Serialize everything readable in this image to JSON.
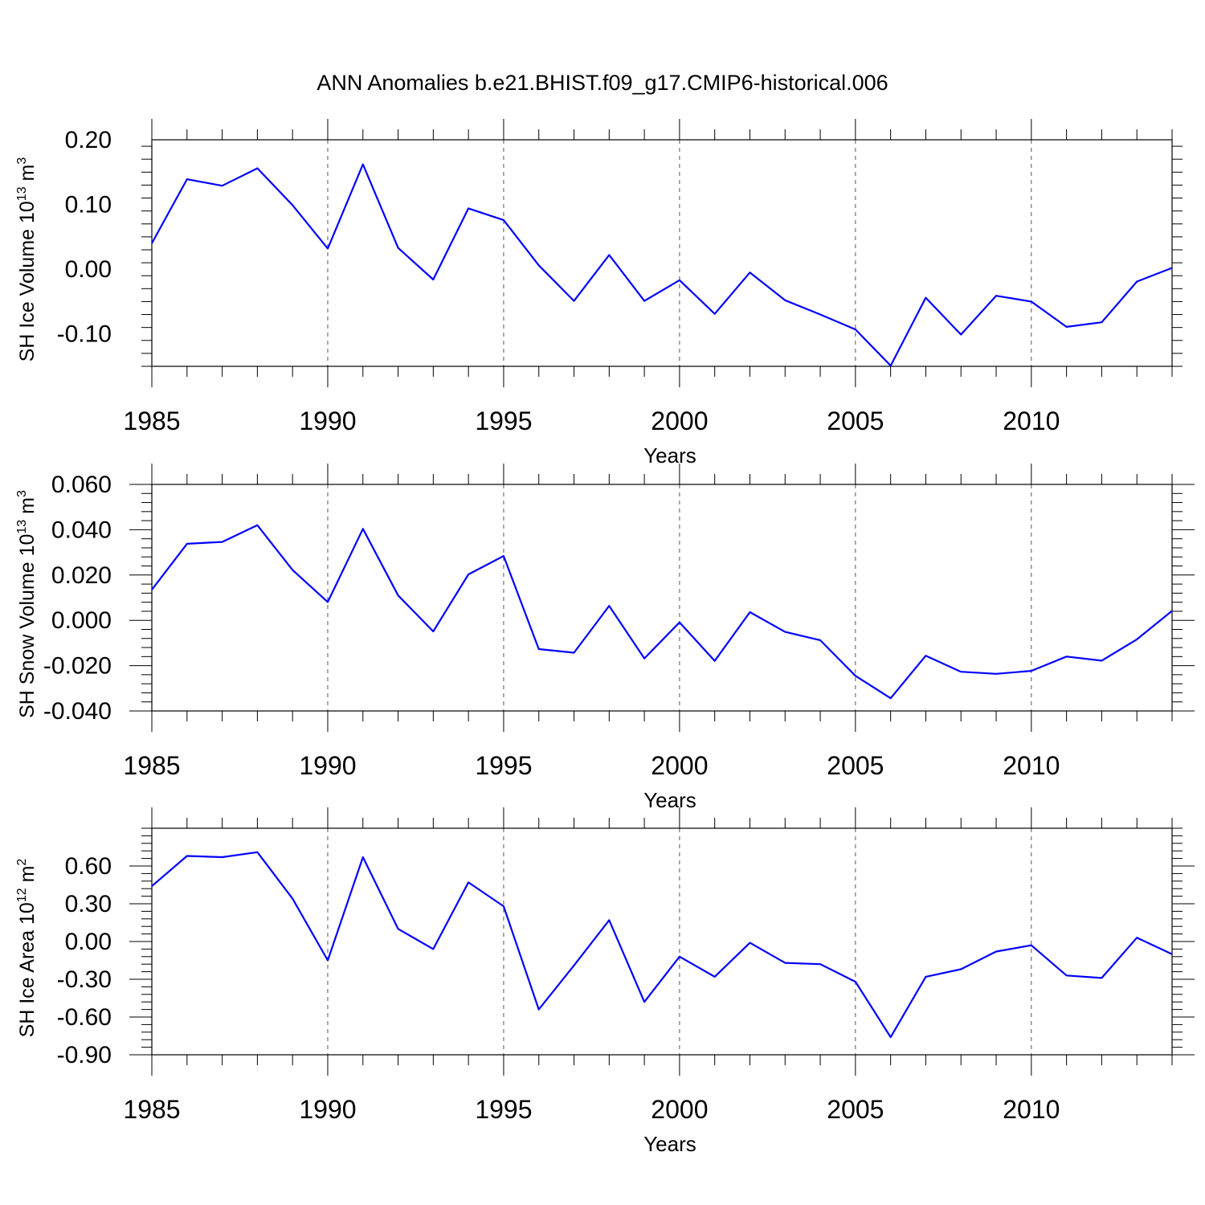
{
  "chart_title": "ANN Anomalies b.e21.BHIST.f09_g17.CMIP6-historical.006",
  "colors": {
    "line": "#0000ff",
    "axes": "#000000"
  },
  "chart_data": [
    {
      "type": "line",
      "ylabel": "SH Ice Volume 10",
      "ylabel_exp": "13",
      "ylabel_unit": " m",
      "ylabel_unit_exp": "3",
      "xlabel": "Years",
      "xlim": [
        1985,
        2014
      ],
      "ylim": [
        -0.15,
        0.2
      ],
      "yticks": [
        0.2,
        0.1,
        0.0,
        -0.1
      ],
      "yticklabels": [
        "0.20",
        "0.10",
        "0.00",
        "-0.10"
      ],
      "xticks": [
        1985,
        1990,
        1995,
        2000,
        2005,
        2010
      ],
      "xticklabels": [
        "1985",
        "1990",
        "1995",
        "2000",
        "2005",
        "2010"
      ],
      "grid": "vertical dashed at labeled years",
      "x": [
        1985,
        1986,
        1987,
        1988,
        1989,
        1990,
        1991,
        1992,
        1993,
        1994,
        1995,
        1996,
        1997,
        1998,
        1999,
        2000,
        2001,
        2002,
        2003,
        2004,
        2005,
        2006,
        2007,
        2008,
        2009,
        2010,
        2011,
        2012,
        2013,
        2014
      ],
      "values": [
        0.04,
        0.139,
        0.129,
        0.156,
        0.099,
        0.032,
        0.162,
        0.033,
        -0.016,
        0.094,
        0.076,
        0.006,
        -0.049,
        0.022,
        -0.049,
        -0.017,
        -0.069,
        -0.005,
        -0.048,
        -0.07,
        -0.093,
        -0.149,
        -0.044,
        -0.101,
        -0.041,
        -0.05,
        -0.089,
        -0.082,
        -0.019,
        0.002
      ]
    },
    {
      "type": "line",
      "ylabel": "SH Snow Volume 10",
      "ylabel_exp": "13",
      "ylabel_unit": " m",
      "ylabel_unit_exp": "3",
      "xlabel": "Years",
      "xlim": [
        1985,
        2014
      ],
      "ylim": [
        -0.04,
        0.06
      ],
      "yticks": [
        0.06,
        0.04,
        0.02,
        0.0,
        -0.02,
        -0.04
      ],
      "yticklabels": [
        "0.060",
        "0.040",
        "0.020",
        "0.000",
        "-0.020",
        "-0.040"
      ],
      "xticks": [
        1985,
        1990,
        1995,
        2000,
        2005,
        2010
      ],
      "xticklabels": [
        "1985",
        "1990",
        "1995",
        "2000",
        "2005",
        "2010"
      ],
      "grid": "vertical dashed at labeled years",
      "x": [
        1985,
        1986,
        1987,
        1988,
        1989,
        1990,
        1991,
        1992,
        1993,
        1994,
        1995,
        1996,
        1997,
        1998,
        1999,
        2000,
        2001,
        2002,
        2003,
        2004,
        2005,
        2006,
        2007,
        2008,
        2009,
        2010,
        2011,
        2012,
        2013,
        2014
      ],
      "values": [
        0.0135,
        0.0338,
        0.0346,
        0.042,
        0.0222,
        0.0081,
        0.0404,
        0.011,
        -0.0049,
        0.0203,
        0.0284,
        -0.0127,
        -0.0143,
        0.0064,
        -0.0168,
        -0.0009,
        -0.0179,
        0.0036,
        -0.0051,
        -0.0088,
        -0.0245,
        -0.0344,
        -0.0156,
        -0.0227,
        -0.0236,
        -0.0223,
        -0.016,
        -0.0178,
        -0.0084,
        0.0042
      ]
    },
    {
      "type": "line",
      "ylabel": "SH Ice Area 10",
      "ylabel_exp": "12",
      "ylabel_unit": " m",
      "ylabel_unit_exp": "2",
      "xlabel": "Years",
      "xlim": [
        1985,
        2014
      ],
      "ylim": [
        -0.9,
        0.9
      ],
      "yticks": [
        0.6,
        0.3,
        0.0,
        -0.3,
        -0.6,
        -0.9
      ],
      "yticklabels": [
        "0.60",
        "0.30",
        "0.00",
        "-0.30",
        "-0.60",
        "-0.90"
      ],
      "xticks": [
        1985,
        1990,
        1995,
        2000,
        2005,
        2010
      ],
      "xticklabels": [
        "1985",
        "1990",
        "1995",
        "2000",
        "2005",
        "2010"
      ],
      "grid": "vertical dashed at labeled years",
      "x": [
        1985,
        1986,
        1987,
        1988,
        1989,
        1990,
        1991,
        1992,
        1993,
        1994,
        1995,
        1996,
        1997,
        1998,
        1999,
        2000,
        2001,
        2002,
        2003,
        2004,
        2005,
        2006,
        2007,
        2008,
        2009,
        2010,
        2011,
        2012,
        2013,
        2014
      ],
      "values": [
        0.44,
        0.68,
        0.67,
        0.71,
        0.34,
        -0.15,
        0.67,
        0.1,
        -0.06,
        0.47,
        0.28,
        -0.54,
        -0.19,
        0.17,
        -0.48,
        -0.12,
        -0.28,
        -0.01,
        -0.17,
        -0.18,
        -0.32,
        -0.76,
        -0.28,
        -0.22,
        -0.08,
        -0.03,
        -0.27,
        -0.29,
        0.03,
        -0.1
      ]
    }
  ]
}
